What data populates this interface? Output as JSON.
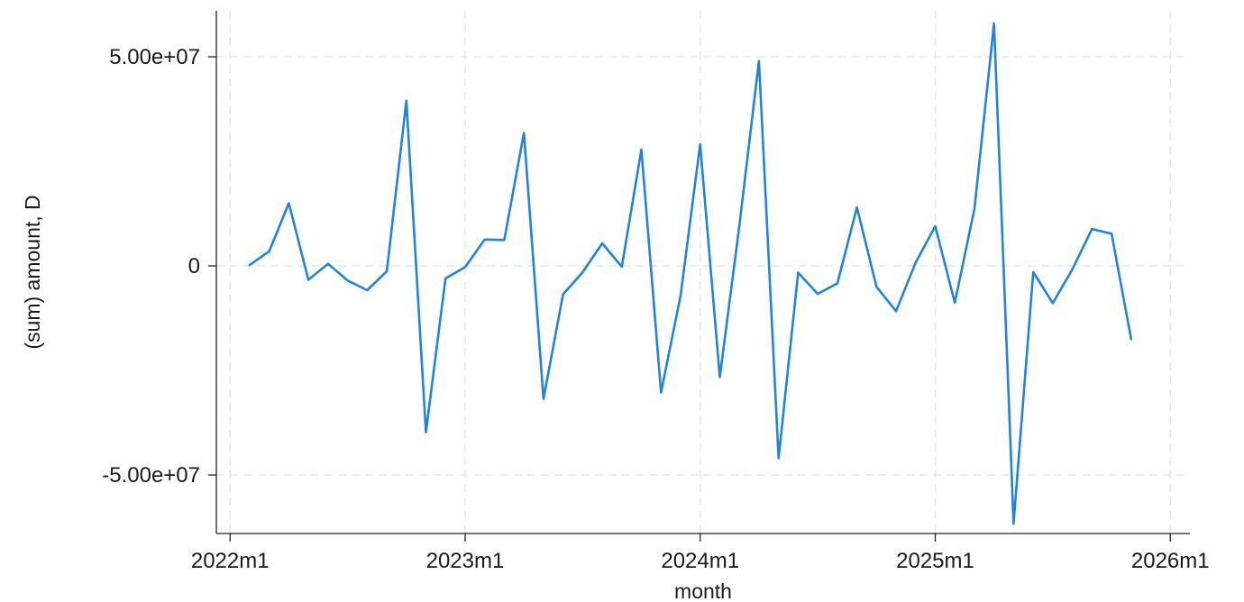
{
  "chart_data": {
    "type": "line",
    "title": "",
    "xlabel": "month",
    "ylabel": "(sum) amount, D",
    "x_ticks": [
      {
        "value": 0,
        "label": "2022m1"
      },
      {
        "value": 12,
        "label": "2023m1"
      },
      {
        "value": 24,
        "label": "2024m1"
      },
      {
        "value": 36,
        "label": "2025m1"
      },
      {
        "value": 48,
        "label": "2026m1"
      }
    ],
    "y_ticks": [
      {
        "value": -50000000,
        "label": "-5.00e+07"
      },
      {
        "value": 0,
        "label": "0"
      },
      {
        "value": 50000000,
        "label": "5.00e+07"
      }
    ],
    "xlim": [
      -0.7,
      49
    ],
    "ylim": [
      -64000000,
      61000000
    ],
    "grid": true,
    "line_color": "#1f83e3",
    "series": [
      {
        "x": [
          "2022m2",
          "2022m3",
          "2022m4",
          "2022m5",
          "2022m6",
          "2022m7",
          "2022m8",
          "2022m9",
          "2022m10",
          "2022m11",
          "2022m12",
          "2023m1",
          "2023m2",
          "2023m3",
          "2023m4",
          "2023m5",
          "2023m6",
          "2023m7",
          "2023m8",
          "2023m9",
          "2023m10",
          "2023m11",
          "2023m12",
          "2024m1",
          "2024m2",
          "2024m3",
          "2024m4",
          "2024m5",
          "2024m6",
          "2024m7",
          "2024m8",
          "2024m9",
          "2024m10",
          "2024m11",
          "2024m12",
          "2025m1",
          "2025m2",
          "2025m3",
          "2025m4",
          "2025m5",
          "2025m6",
          "2025m7",
          "2025m8",
          "2025m9",
          "2025m10",
          "2025m11"
        ],
        "values": [
          200000,
          3500000,
          15000000,
          -3300000,
          500000,
          -3500000,
          -5800000,
          -1300000,
          39500000,
          -39800000,
          -3000000,
          -300000,
          6300000,
          6200000,
          31800000,
          -31800000,
          -6800000,
          -1500000,
          5400000,
          -200000,
          27800000,
          -30300000,
          -7100000,
          29100000,
          -26600000,
          9600000,
          49000000,
          -46000000,
          -1600000,
          -6700000,
          -4200000,
          14000000,
          -5000000,
          -10800000,
          800000,
          9500000,
          -8800000,
          13700000,
          58000000,
          -61600000,
          -1500000,
          -8900000,
          -800000,
          8800000,
          7700000,
          -17500000
        ]
      }
    ]
  }
}
